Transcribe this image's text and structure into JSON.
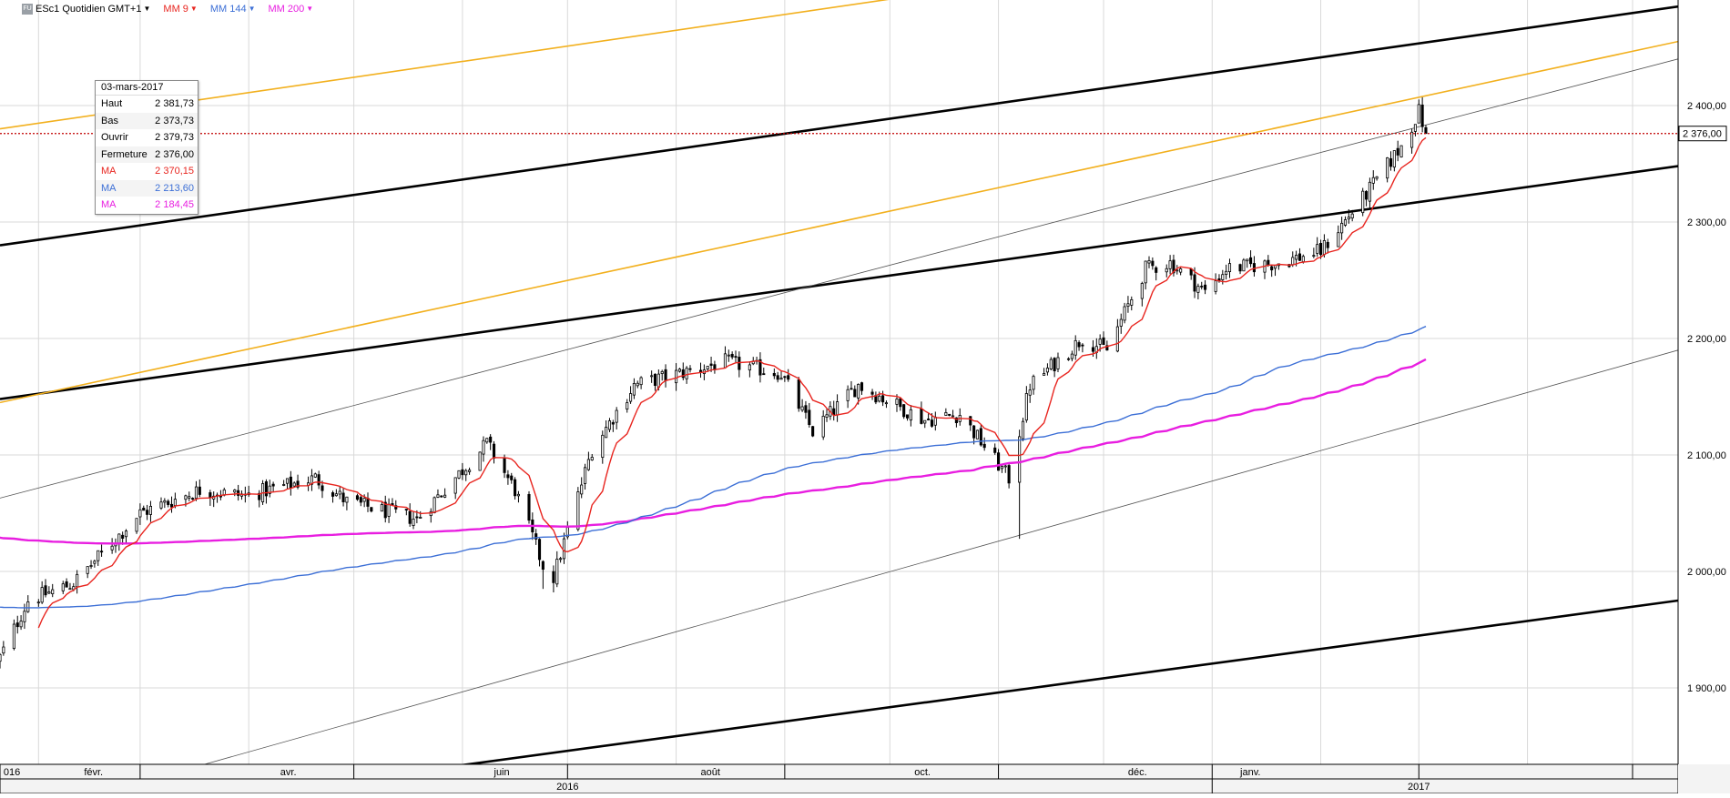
{
  "toolbar": {
    "symbol": "ESc1 Quotidien GMT+1",
    "ma1": {
      "label": "MM 9",
      "color": "#e8251f"
    },
    "ma2": {
      "label": "MM 144",
      "color": "#3c6fd6"
    },
    "ma3": {
      "label": "MM 200",
      "color": "#e81ee0"
    }
  },
  "infobox": {
    "date": "03-mars-2017",
    "rows": [
      {
        "k": "Haut",
        "v": "2 381,73",
        "color": "#000000"
      },
      {
        "k": "Bas",
        "v": "2 373,73",
        "color": "#000000"
      },
      {
        "k": "Ouvrir",
        "v": "2 379,73",
        "color": "#000000"
      },
      {
        "k": "Fermeture",
        "v": "2 376,00",
        "color": "#000000"
      },
      {
        "k": "MA",
        "v": "2 370,15",
        "color": "#e8251f"
      },
      {
        "k": "MA",
        "v": "2 213,60",
        "color": "#3c6fd6"
      },
      {
        "k": "MA",
        "v": "2 184,45",
        "color": "#e81ee0"
      }
    ]
  },
  "chart_data": {
    "type": "candlestick",
    "title": "ESc1 Quotidien GMT+1",
    "y_ticks": [
      "1 900,00",
      "2 000,00",
      "2 100,00",
      "2 200,00",
      "2 300,00",
      "2 400,00"
    ],
    "y_tick_values": [
      1900,
      2000,
      2100,
      2200,
      2300,
      2400
    ],
    "ylim": [
      1830,
      2440
    ],
    "x_month_labels": [
      "016",
      "févr.",
      "avr.",
      "juin",
      "août",
      "oct.",
      "déc.",
      "janv."
    ],
    "x_year_labels": [
      "2016",
      "2017"
    ],
    "last_price": 2376.0,
    "last_price_label": "2 376,00",
    "grid": true,
    "colors": {
      "up": "#ffffff",
      "down": "#000000",
      "ma9": "#e8251f",
      "ma144": "#3c6fd6",
      "ma200": "#e81ee0",
      "trend_black": "#000000",
      "trend_gold": "#f2b01e",
      "trend_thin": "#555555",
      "last_line": "#c00000"
    },
    "anchors": [
      [
        "2016-01-20",
        1920
      ],
      [
        "2016-01-29",
        1975
      ],
      [
        "2016-02-11",
        1990
      ],
      [
        "2016-03-01",
        2050
      ],
      [
        "2016-03-18",
        2070
      ],
      [
        "2016-03-31",
        2065
      ],
      [
        "2016-04-20",
        2080
      ],
      [
        "2016-04-29",
        2060
      ],
      [
        "2016-05-19",
        2045
      ],
      [
        "2016-06-08",
        2110
      ],
      [
        "2016-06-16",
        2070
      ],
      [
        "2016-06-24",
        2005
      ],
      [
        "2016-06-27",
        1995
      ],
      [
        "2016-07-08",
        2105
      ],
      [
        "2016-07-20",
        2160
      ],
      [
        "2016-08-15",
        2180
      ],
      [
        "2016-08-31",
        2170
      ],
      [
        "2016-09-09",
        2120
      ],
      [
        "2016-09-22",
        2160
      ],
      [
        "2016-10-11",
        2130
      ],
      [
        "2016-10-21",
        2135
      ],
      [
        "2016-11-04",
        2080
      ],
      [
        "2016-11-10",
        2160
      ],
      [
        "2016-11-25",
        2200
      ],
      [
        "2016-12-02",
        2190
      ],
      [
        "2016-12-13",
        2260
      ],
      [
        "2016-12-20",
        2265
      ],
      [
        "2016-12-30",
        2240
      ],
      [
        "2017-01-05",
        2260
      ],
      [
        "2017-01-20",
        2265
      ],
      [
        "2017-02-01",
        2275
      ],
      [
        "2017-02-13",
        2320
      ],
      [
        "2017-02-24",
        2365
      ],
      [
        "2017-03-01",
        2395
      ],
      [
        "2017-03-03",
        2376
      ]
    ],
    "trendlines": [
      {
        "name": "black-upper",
        "p1": [
          "2016-01-21",
          2280
        ],
        "p2": [
          "2017-05-14",
          2485
        ],
        "style": "black"
      },
      {
        "name": "black-middle",
        "p1": [
          "2016-01-21",
          2148
        ],
        "p2": [
          "2017-05-14",
          2348
        ],
        "style": "black"
      },
      {
        "name": "black-lower",
        "p1": [
          "2016-01-21",
          1780
        ],
        "p2": [
          "2017-05-14",
          1975
        ],
        "style": "black"
      },
      {
        "name": "gold-upper",
        "p1": [
          "2016-01-21",
          2380
        ],
        "p2": [
          "2017-05-14",
          2590
        ],
        "style": "gold"
      },
      {
        "name": "gold-lower",
        "p1": [
          "2016-01-21",
          2145
        ],
        "p2": [
          "2017-05-14",
          2455
        ],
        "style": "gold"
      },
      {
        "name": "thin-upper",
        "p1": [
          "2016-01-21",
          2063
        ],
        "p2": [
          "2017-05-14",
          2440
        ],
        "style": "thin"
      },
      {
        "name": "thin-lower",
        "p1": [
          "2016-01-21",
          1785
        ],
        "p2": [
          "2017-05-14",
          2190
        ],
        "style": "thin"
      }
    ]
  }
}
